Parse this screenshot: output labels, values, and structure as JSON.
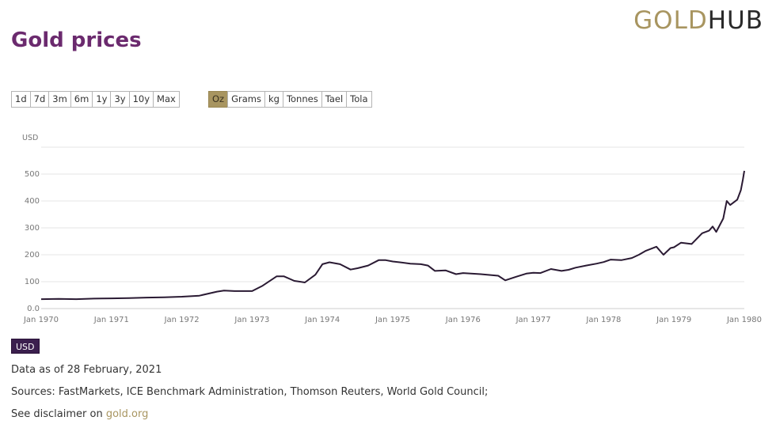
{
  "logo": {
    "gold": "GOLD",
    "hub": "HUB"
  },
  "page_title": "Gold prices",
  "range_buttons": [
    "1d",
    "7d",
    "3m",
    "6m",
    "1y",
    "3y",
    "10y",
    "Max"
  ],
  "unit_buttons": [
    "Oz",
    "Grams",
    "kg",
    "Tonnes",
    "Tael",
    "Tola"
  ],
  "active_unit": "Oz",
  "currency_badge": "USD",
  "footer": {
    "data_as_of": "Data as of 28 February, 2021",
    "sources": "Sources: FastMarkets, ICE Benchmark Administration, Thomson Reuters, World Gold Council;",
    "disclaimer_prefix": "See disclaimer on ",
    "disclaimer_link": "gold.org"
  },
  "colors": {
    "title": "#6b2a6e",
    "gold_accent": "#a89560",
    "line": "#2a1a33",
    "badge": "#3b1f4e",
    "grid": "#e6e6e6"
  },
  "chart_data": {
    "type": "line",
    "title": "",
    "ylabel": "USD",
    "xlabel": "",
    "ylim": [
      0,
      600
    ],
    "xlim": [
      1970,
      1980
    ],
    "y_ticks": [
      0,
      100,
      200,
      300,
      400,
      500
    ],
    "y_tick_labels": [
      "0.0",
      "100",
      "200",
      "300",
      "400",
      "500"
    ],
    "x_ticks": [
      1970,
      1971,
      1972,
      1973,
      1974,
      1975,
      1976,
      1977,
      1978,
      1979,
      1980
    ],
    "x_tick_labels": [
      "Jan 1970",
      "Jan 1971",
      "Jan 1972",
      "Jan 1973",
      "Jan 1974",
      "Jan 1975",
      "Jan 1976",
      "Jan 1977",
      "Jan 1978",
      "Jan 1979",
      "Jan 1980"
    ],
    "grid": true,
    "legend": "none",
    "series": [
      {
        "name": "",
        "x": [
          1970.0,
          1970.25,
          1970.5,
          1970.75,
          1971.0,
          1971.25,
          1971.5,
          1971.75,
          1972.0,
          1972.25,
          1972.5,
          1972.6,
          1972.75,
          1973.0,
          1973.15,
          1973.35,
          1973.45,
          1973.6,
          1973.75,
          1973.9,
          1974.0,
          1974.1,
          1974.25,
          1974.4,
          1974.5,
          1974.65,
          1974.8,
          1974.9,
          1975.0,
          1975.1,
          1975.25,
          1975.4,
          1975.5,
          1975.6,
          1975.75,
          1975.9,
          1976.0,
          1976.25,
          1976.5,
          1976.6,
          1976.75,
          1976.9,
          1977.0,
          1977.1,
          1977.25,
          1977.4,
          1977.5,
          1977.6,
          1977.75,
          1977.9,
          1978.0,
          1978.1,
          1978.25,
          1978.4,
          1978.5,
          1978.6,
          1978.75,
          1978.85,
          1978.95,
          1979.0,
          1979.1,
          1979.25,
          1979.4,
          1979.5,
          1979.55,
          1979.6,
          1979.7,
          1979.75,
          1979.8,
          1979.85,
          1979.9,
          1979.95,
          1979.98,
          1980.0
        ],
        "values": [
          35,
          36,
          35,
          37,
          38,
          39,
          41,
          42,
          44,
          48,
          63,
          67,
          65,
          65,
          85,
          120,
          120,
          103,
          97,
          126,
          165,
          172,
          165,
          145,
          150,
          160,
          180,
          180,
          175,
          172,
          167,
          165,
          160,
          140,
          142,
          128,
          132,
          128,
          122,
          105,
          118,
          130,
          133,
          132,
          147,
          140,
          144,
          152,
          160,
          167,
          173,
          182,
          180,
          188,
          200,
          215,
          230,
          200,
          225,
          228,
          245,
          240,
          280,
          290,
          305,
          285,
          335,
          400,
          385,
          395,
          405,
          440,
          480,
          512
        ]
      }
    ]
  }
}
